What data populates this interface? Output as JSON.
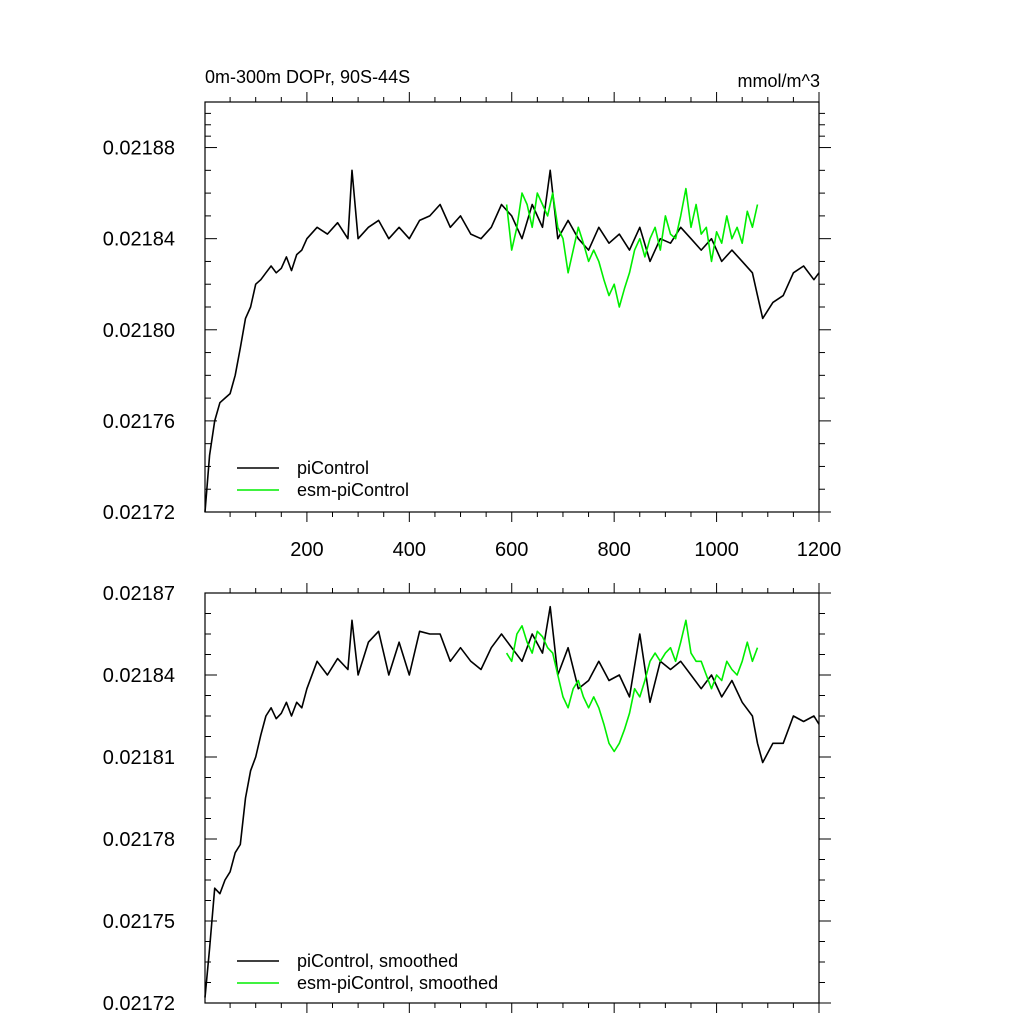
{
  "chart_data": [
    {
      "type": "line",
      "title": "0m-300m DOPr, 90S-44S",
      "units_label": "mmol/m^3",
      "xlabel": "",
      "ylabel": "",
      "xlim": [
        1,
        1200
      ],
      "ylim": [
        0.02172,
        0.0219
      ],
      "x_ticks": [
        200,
        400,
        600,
        800,
        1000,
        1200
      ],
      "x_tick_labels": [
        "200",
        "400",
        "600",
        "800",
        "1000",
        "1200"
      ],
      "y_ticks": [
        0.02172,
        0.02176,
        0.0218,
        0.02184,
        0.02188
      ],
      "y_tick_labels": [
        "0.02172",
        "0.02176",
        "0.02180",
        "0.02184",
        "0.02188"
      ],
      "legend_position": "bottom-left",
      "grid": false,
      "series": [
        {
          "name": "piControl",
          "color": "#000000",
          "x": [
            1,
            10,
            20,
            30,
            40,
            50,
            60,
            70,
            80,
            90,
            100,
            110,
            120,
            130,
            140,
            150,
            160,
            170,
            180,
            190,
            200,
            220,
            240,
            260,
            280,
            288,
            300,
            320,
            340,
            360,
            380,
            400,
            420,
            440,
            460,
            480,
            500,
            520,
            540,
            560,
            580,
            600,
            620,
            640,
            660,
            675,
            690,
            710,
            730,
            750,
            770,
            790,
            810,
            830,
            850,
            870,
            890,
            910,
            930,
            950,
            970,
            990,
            1010,
            1030,
            1050,
            1070,
            1080,
            1090,
            1110,
            1130,
            1150,
            1170,
            1190,
            1200
          ],
          "values": [
            0.02172,
            0.021745,
            0.02176,
            0.021768,
            0.02177,
            0.021772,
            0.02178,
            0.021792,
            0.021805,
            0.02181,
            0.02182,
            0.021822,
            0.021825,
            0.021828,
            0.021825,
            0.021827,
            0.021832,
            0.021826,
            0.021833,
            0.021835,
            0.02184,
            0.021845,
            0.021842,
            0.021847,
            0.02184,
            0.02187,
            0.02184,
            0.021845,
            0.021848,
            0.02184,
            0.021845,
            0.02184,
            0.021848,
            0.02185,
            0.021855,
            0.021845,
            0.02185,
            0.021842,
            0.02184,
            0.021845,
            0.021855,
            0.02185,
            0.02184,
            0.021855,
            0.021845,
            0.02187,
            0.02184,
            0.021848,
            0.02184,
            0.021835,
            0.021845,
            0.021838,
            0.021842,
            0.021835,
            0.021845,
            0.02183,
            0.02184,
            0.021838,
            0.021845,
            0.02184,
            0.021835,
            0.02184,
            0.02183,
            0.021835,
            0.02183,
            0.021825,
            0.021815,
            0.021805,
            0.021812,
            0.021815,
            0.021825,
            0.021828,
            0.021822,
            0.021825
          ]
        },
        {
          "name": "esm-piControl",
          "color": "#00ee00",
          "x": [
            590,
            600,
            610,
            620,
            630,
            640,
            650,
            660,
            670,
            680,
            690,
            700,
            710,
            720,
            730,
            740,
            750,
            760,
            770,
            780,
            790,
            800,
            810,
            820,
            830,
            840,
            850,
            860,
            870,
            880,
            890,
            900,
            910,
            920,
            930,
            940,
            950,
            960,
            970,
            980,
            990,
            1000,
            1010,
            1020,
            1030,
            1040,
            1050,
            1060,
            1070,
            1080
          ],
          "values": [
            0.021855,
            0.021835,
            0.021845,
            0.02186,
            0.021855,
            0.021845,
            0.02186,
            0.021855,
            0.02185,
            0.02186,
            0.021845,
            0.02184,
            0.021825,
            0.021835,
            0.021845,
            0.021838,
            0.02183,
            0.021835,
            0.02183,
            0.021822,
            0.021815,
            0.02182,
            0.02181,
            0.021818,
            0.021825,
            0.021835,
            0.02184,
            0.021832,
            0.02184,
            0.021845,
            0.021835,
            0.02185,
            0.021842,
            0.02184,
            0.02185,
            0.021862,
            0.021845,
            0.021855,
            0.021842,
            0.021845,
            0.02183,
            0.021843,
            0.021838,
            0.02185,
            0.02184,
            0.021845,
            0.021838,
            0.021852,
            0.021845,
            0.021855
          ]
        }
      ]
    },
    {
      "type": "line",
      "title": "",
      "xlabel": "",
      "ylabel": "",
      "xlim": [
        1,
        1200
      ],
      "ylim": [
        0.02172,
        0.02187
      ],
      "x_ticks": [
        200,
        400,
        600,
        800,
        1000,
        1200
      ],
      "y_ticks": [
        0.02172,
        0.02175,
        0.02178,
        0.02181,
        0.02184,
        0.02187
      ],
      "y_tick_labels": [
        "0.02172",
        "0.02175",
        "0.02178",
        "0.02181",
        "0.02184",
        "0.02187"
      ],
      "legend_position": "bottom-left",
      "grid": false,
      "series": [
        {
          "name": "piControl, smoothed",
          "color": "#000000",
          "x": [
            1,
            10,
            20,
            30,
            40,
            50,
            60,
            70,
            80,
            90,
            100,
            110,
            120,
            130,
            140,
            150,
            160,
            170,
            180,
            190,
            200,
            220,
            240,
            260,
            280,
            288,
            300,
            320,
            340,
            360,
            380,
            400,
            420,
            440,
            460,
            480,
            500,
            520,
            540,
            560,
            580,
            600,
            620,
            640,
            660,
            675,
            690,
            710,
            730,
            750,
            770,
            790,
            810,
            830,
            850,
            870,
            890,
            910,
            930,
            950,
            970,
            990,
            1010,
            1030,
            1050,
            1070,
            1080,
            1090,
            1110,
            1130,
            1150,
            1170,
            1190,
            1200
          ],
          "values": [
            0.021722,
            0.02174,
            0.021762,
            0.02176,
            0.021765,
            0.021768,
            0.021775,
            0.021778,
            0.021795,
            0.021805,
            0.02181,
            0.021818,
            0.021825,
            0.021828,
            0.021824,
            0.021826,
            0.02183,
            0.021825,
            0.02183,
            0.021828,
            0.021835,
            0.021845,
            0.02184,
            0.021846,
            0.021842,
            0.02186,
            0.02184,
            0.021852,
            0.021856,
            0.02184,
            0.021852,
            0.02184,
            0.021856,
            0.021855,
            0.021855,
            0.021845,
            0.02185,
            0.021845,
            0.021842,
            0.02185,
            0.021855,
            0.02185,
            0.021845,
            0.021855,
            0.021848,
            0.021865,
            0.02184,
            0.02185,
            0.021835,
            0.021838,
            0.021845,
            0.021838,
            0.02184,
            0.021832,
            0.021855,
            0.02183,
            0.021845,
            0.021842,
            0.021845,
            0.02184,
            0.021835,
            0.02184,
            0.021832,
            0.021838,
            0.02183,
            0.021825,
            0.021815,
            0.021808,
            0.021815,
            0.021815,
            0.021825,
            0.021823,
            0.021825,
            0.021822
          ]
        },
        {
          "name": "esm-piControl, smoothed",
          "color": "#00ee00",
          "x": [
            590,
            600,
            610,
            620,
            630,
            640,
            650,
            660,
            670,
            680,
            690,
            700,
            710,
            720,
            730,
            740,
            750,
            760,
            770,
            780,
            790,
            800,
            810,
            820,
            830,
            840,
            850,
            860,
            870,
            880,
            890,
            900,
            910,
            920,
            930,
            940,
            950,
            960,
            970,
            980,
            990,
            1000,
            1010,
            1020,
            1030,
            1040,
            1050,
            1060,
            1070,
            1080
          ],
          "values": [
            0.021848,
            0.021845,
            0.021855,
            0.021858,
            0.021852,
            0.021848,
            0.021856,
            0.021854,
            0.02185,
            0.021848,
            0.02184,
            0.021832,
            0.021828,
            0.021835,
            0.021838,
            0.021832,
            0.021828,
            0.021832,
            0.021828,
            0.021822,
            0.021815,
            0.021812,
            0.021815,
            0.02182,
            0.021826,
            0.021835,
            0.021832,
            0.021838,
            0.021845,
            0.021848,
            0.021845,
            0.021848,
            0.02185,
            0.021845,
            0.021852,
            0.02186,
            0.021848,
            0.021845,
            0.021845,
            0.02184,
            0.021835,
            0.02184,
            0.021838,
            0.021845,
            0.021842,
            0.02184,
            0.021845,
            0.021852,
            0.021845,
            0.02185
          ]
        }
      ]
    }
  ]
}
